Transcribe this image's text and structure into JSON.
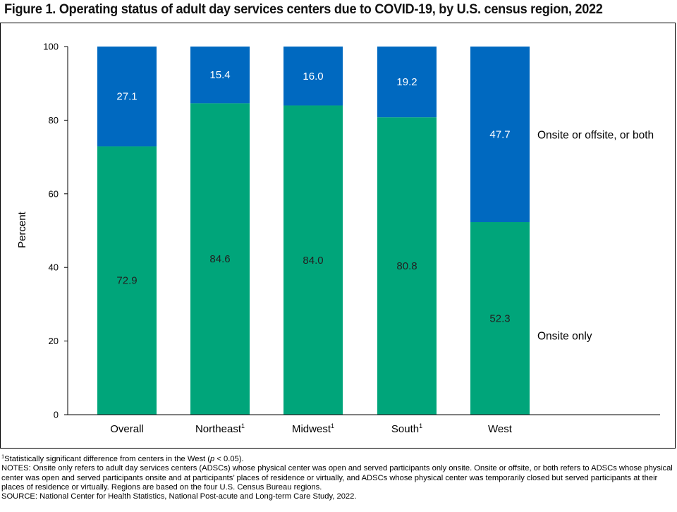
{
  "title": "Figure 1. Operating status of adult day services centers due to COVID-19, by U.S. census region, 2022",
  "colors": {
    "onsite_only": "#00a57a",
    "onsite_offsite_both": "#0069c0",
    "onsite_label_text": "#222222",
    "both_label_text": "#ffffff"
  },
  "chart_data": {
    "type": "bar",
    "stacked": true,
    "categories": [
      "Overall",
      "Northeast",
      "Midwest",
      "South",
      "West"
    ],
    "category_superscripts": [
      "",
      "1",
      "1",
      "1",
      ""
    ],
    "series": [
      {
        "name": "Onsite only",
        "values": [
          72.9,
          84.6,
          84.0,
          80.8,
          52.3
        ]
      },
      {
        "name": "Onsite or offsite, or both",
        "values": [
          27.1,
          15.4,
          16.0,
          19.2,
          47.7
        ]
      }
    ],
    "ylabel": "Percent",
    "xlabel": "",
    "ylim": [
      0,
      100
    ],
    "yticks": [
      0,
      20,
      40,
      60,
      80,
      100
    ],
    "grid": false,
    "legend_placement": "right of last bar, labels aligned with segments"
  },
  "notes": {
    "footnote_sup": "1",
    "footnote_before_p": "Statistically significant difference from centers in the West (",
    "footnote_p": "p",
    "footnote_after_p": " < 0.05).",
    "notes": "NOTES: Onsite only refers to adult day services centers (ADSCs) whose physical center was open and served participants only onsite. Onsite or offsite, or both refers to ADSCs whose physical center was open and served participants onsite and at participants’ places of residence or virtually, and ADSCs whose physical center was temporarily closed but served participants at their places of residence or virtually. Regions are based on the four U.S. Census Bureau regions.",
    "source": "SOURCE: National Center for Health Statistics, National Post-acute and Long-term Care Study, 2022."
  }
}
